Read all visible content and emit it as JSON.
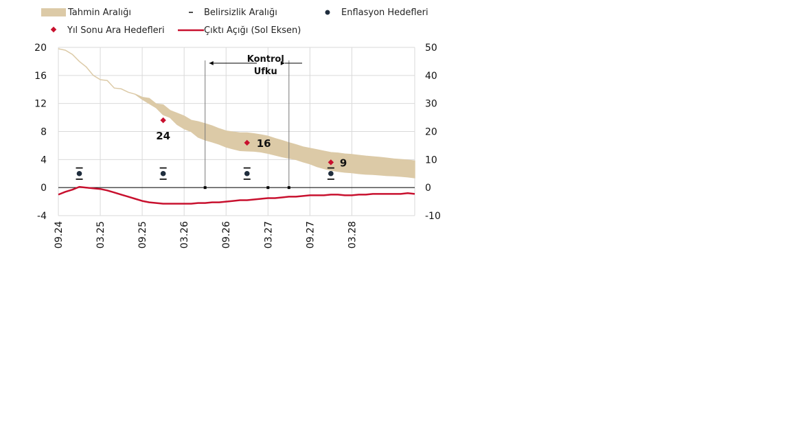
{
  "chart_data": {
    "type": "area",
    "x_ticks": [
      "09.24",
      "03.25",
      "09.25",
      "03.26",
      "09.26",
      "03.27",
      "09.27",
      "03.28"
    ],
    "x_range": [
      "09.24",
      "12.28"
    ],
    "ylim_left": [
      -4,
      20
    ],
    "yticks_left": [
      "20",
      "16",
      "12",
      "8",
      "4",
      "0",
      "-4"
    ],
    "ylim_right": [
      -10,
      50
    ],
    "yticks_right": [
      "50",
      "40",
      "30",
      "20",
      "10",
      "0",
      "-10"
    ],
    "grid": true,
    "legend": [
      {
        "key": "band",
        "label": "Tahmin Aralığı"
      },
      {
        "key": "unc",
        "label": "Belirsizlik Aralığı"
      },
      {
        "key": "target",
        "label": "Enflasyon Hedefleri"
      },
      {
        "key": "interim",
        "label": "Yıl Sonu Ara Hedefleri"
      },
      {
        "key": "gap",
        "label": "Çıktı Açığı (Sol Eksen)"
      }
    ],
    "forecast_band": {
      "x": [
        "09.24",
        "10.24",
        "11.24",
        "12.24",
        "01.25",
        "02.25",
        "03.25",
        "04.25",
        "05.25",
        "06.25",
        "07.25",
        "08.25",
        "09.25",
        "10.25",
        "11.25",
        "12.25",
        "01.26",
        "02.26",
        "03.26",
        "04.26",
        "05.26",
        "06.26",
        "07.26",
        "08.26",
        "09.26",
        "10.26",
        "11.26",
        "12.26",
        "01.27",
        "02.27",
        "03.27",
        "04.27",
        "05.27",
        "06.27",
        "07.27",
        "08.27",
        "09.27",
        "10.27",
        "11.27",
        "12.27",
        "01.28",
        "02.28",
        "03.28",
        "04.28",
        "05.28",
        "06.28",
        "07.28",
        "08.28",
        "09.28",
        "10.28",
        "11.28",
        "12.28"
      ],
      "upper_pct": [
        49.5,
        49,
        47.5,
        45,
        43,
        40,
        38.5,
        38.2,
        35.5,
        35.2,
        34,
        33.3,
        32.2,
        31.8,
        29.8,
        29.5,
        27.5,
        26.5,
        25.5,
        24,
        23.5,
        22.8,
        22,
        21,
        20.2,
        19.8,
        19.5,
        19.5,
        19.2,
        18.8,
        18.3,
        17.5,
        16.8,
        16,
        15.3,
        14.5,
        14,
        13.5,
        13,
        12.5,
        12.3,
        12,
        11.8,
        11.5,
        11.2,
        11,
        10.8,
        10.5,
        10.2,
        10,
        9.8,
        9.5
      ],
      "lower_pct": [
        49.5,
        49,
        47.5,
        45,
        43,
        40,
        38.5,
        38.2,
        35.5,
        35.2,
        34,
        33.3,
        31.5,
        30,
        28.5,
        26,
        25,
        22.5,
        21,
        20,
        18,
        17,
        16.3,
        15.5,
        14.5,
        13.8,
        13.2,
        13.1,
        13,
        12.7,
        12.2,
        11.6,
        11,
        10.5,
        10,
        9.2,
        8.5,
        7.5,
        6.8,
        6.2,
        5.8,
        5.5,
        5.3,
        5,
        4.8,
        4.7,
        4.5,
        4.3,
        4.2,
        4,
        3.8,
        3.5
      ]
    },
    "uncertainty_range": [
      {
        "x": "12.24",
        "low_pct": 3,
        "high_pct": 7
      },
      {
        "x": "12.25",
        "low_pct": 3,
        "high_pct": 7
      },
      {
        "x": "12.26",
        "low_pct": 3,
        "high_pct": 7
      },
      {
        "x": "12.27",
        "low_pct": 3,
        "high_pct": 7
      }
    ],
    "inflation_targets": [
      {
        "x": "12.24",
        "value_pct": 5
      },
      {
        "x": "12.25",
        "value_pct": 5
      },
      {
        "x": "12.26",
        "value_pct": 5
      },
      {
        "x": "12.27",
        "value_pct": 5
      }
    ],
    "interim_targets": [
      {
        "x": "12.25",
        "value_pct": 24,
        "label": "24"
      },
      {
        "x": "12.26",
        "value_pct": 16,
        "label": "16"
      },
      {
        "x": "12.27",
        "value_pct": 9,
        "label": "9"
      }
    ],
    "output_gap": {
      "x": [
        "09.24",
        "10.24",
        "11.24",
        "12.24",
        "01.25",
        "02.25",
        "03.25",
        "04.25",
        "05.25",
        "06.25",
        "07.25",
        "08.25",
        "09.25",
        "10.25",
        "11.25",
        "12.25",
        "01.26",
        "02.26",
        "03.26",
        "04.26",
        "05.26",
        "06.26",
        "07.26",
        "08.26",
        "09.26",
        "10.26",
        "11.26",
        "12.26",
        "01.27",
        "02.27",
        "03.27",
        "04.27",
        "05.27",
        "06.27",
        "07.27",
        "08.27",
        "09.27",
        "10.27",
        "11.27",
        "12.27",
        "01.28",
        "02.28",
        "03.28",
        "04.28",
        "05.28",
        "06.28",
        "07.28",
        "08.28",
        "09.28",
        "10.28",
        "11.28",
        "12.28"
      ],
      "values": [
        -1.0,
        -0.6,
        -0.3,
        0.1,
        0.0,
        -0.1,
        -0.2,
        -0.4,
        -0.7,
        -1.0,
        -1.3,
        -1.6,
        -1.9,
        -2.1,
        -2.2,
        -2.3,
        -2.3,
        -2.3,
        -2.3,
        -2.3,
        -2.2,
        -2.2,
        -2.1,
        -2.1,
        -2.0,
        -1.9,
        -1.8,
        -1.8,
        -1.7,
        -1.6,
        -1.5,
        -1.5,
        -1.4,
        -1.3,
        -1.3,
        -1.2,
        -1.1,
        -1.1,
        -1.1,
        -1.0,
        -1.0,
        -1.1,
        -1.1,
        -1.0,
        -1.0,
        -0.9,
        -0.9,
        -0.9,
        -0.9,
        -0.9,
        -0.8,
        -0.9
      ]
    },
    "control_horizon": {
      "label_line1": "Kontrol",
      "label_line2": "Ufku",
      "from": "06.26",
      "to": "06.27"
    },
    "colors": {
      "band": "#dccaa7",
      "uncertainty": "#111111",
      "target": "#1f2d3d",
      "interim": "#c8102e",
      "gap": "#c8102e",
      "grid": "#d9d9d9"
    }
  }
}
